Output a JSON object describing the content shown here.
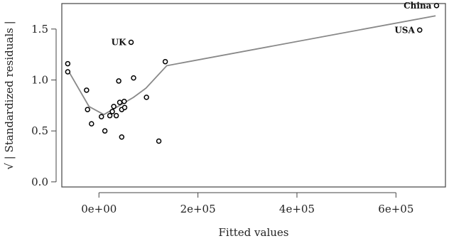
{
  "chart_data": {
    "type": "scatter",
    "xlabel": "Fitted values",
    "ylabel": "√ | Standardized residuals |",
    "xlim": [
      -75000,
      700000
    ],
    "ylim": [
      -0.05,
      1.75
    ],
    "x_ticks": [
      {
        "value": 0,
        "label": "0e+00"
      },
      {
        "value": 200000,
        "label": "2e+05"
      },
      {
        "value": 400000,
        "label": "4e+05"
      },
      {
        "value": 600000,
        "label": "6e+05"
      }
    ],
    "y_ticks": [
      {
        "value": 0.0,
        "label": "0.0"
      },
      {
        "value": 0.5,
        "label": "0.5"
      },
      {
        "value": 1.0,
        "label": "1.0"
      },
      {
        "value": 1.5,
        "label": "1.5"
      }
    ],
    "grid": false,
    "points": [
      {
        "x": -63000,
        "y": 1.16,
        "label": ""
      },
      {
        "x": -63000,
        "y": 1.08,
        "label": ""
      },
      {
        "x": -25000,
        "y": 0.9,
        "label": ""
      },
      {
        "x": -23000,
        "y": 0.71,
        "label": ""
      },
      {
        "x": -15000,
        "y": 0.57,
        "label": ""
      },
      {
        "x": 5000,
        "y": 0.64,
        "label": ""
      },
      {
        "x": 12000,
        "y": 0.5,
        "label": ""
      },
      {
        "x": 22000,
        "y": 0.65,
        "label": ""
      },
      {
        "x": 27000,
        "y": 0.69,
        "label": ""
      },
      {
        "x": 30000,
        "y": 0.74,
        "label": ""
      },
      {
        "x": 35000,
        "y": 0.65,
        "label": ""
      },
      {
        "x": 40000,
        "y": 0.99,
        "label": ""
      },
      {
        "x": 42000,
        "y": 0.78,
        "label": ""
      },
      {
        "x": 46000,
        "y": 0.71,
        "label": ""
      },
      {
        "x": 46000,
        "y": 0.44,
        "label": ""
      },
      {
        "x": 51000,
        "y": 0.79,
        "label": ""
      },
      {
        "x": 52000,
        "y": 0.73,
        "label": ""
      },
      {
        "x": 65000,
        "y": 1.37,
        "label": "UK"
      },
      {
        "x": 70000,
        "y": 1.02,
        "label": ""
      },
      {
        "x": 96000,
        "y": 0.83,
        "label": ""
      },
      {
        "x": 121000,
        "y": 0.4,
        "label": ""
      },
      {
        "x": 134000,
        "y": 1.18,
        "label": ""
      },
      {
        "x": 648000,
        "y": 1.49,
        "label": "USA"
      },
      {
        "x": 682000,
        "y": 1.73,
        "label": "China"
      }
    ],
    "smooth_line": [
      {
        "x": -63000,
        "y": 1.1
      },
      {
        "x": -20000,
        "y": 0.74
      },
      {
        "x": 10000,
        "y": 0.66
      },
      {
        "x": 35000,
        "y": 0.73
      },
      {
        "x": 70000,
        "y": 0.83
      },
      {
        "x": 95000,
        "y": 0.92
      },
      {
        "x": 137000,
        "y": 1.14
      },
      {
        "x": 680000,
        "y": 1.63
      }
    ],
    "colors": {
      "points": "#000000",
      "smooth": "#888888",
      "frame": "#444444"
    }
  }
}
